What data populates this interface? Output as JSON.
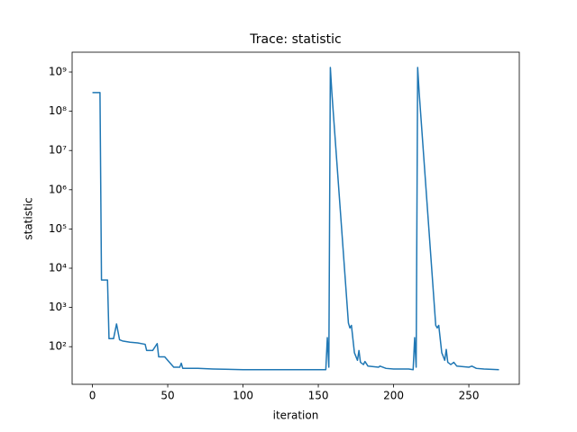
{
  "chart_data": {
    "type": "line",
    "title": "Trace: statistic",
    "x_label": "iteration",
    "y_label": "statistic",
    "y_scale": "log",
    "xlim": [
      -13.5,
      283.5
    ],
    "xticks": [
      0,
      50,
      100,
      150,
      200,
      250
    ],
    "ylim": [
      11,
      3200000000
    ],
    "yticks": [
      {
        "value": 100,
        "label": "10²"
      },
      {
        "value": 1000,
        "label": "10³"
      },
      {
        "value": 10000,
        "label": "10⁴"
      },
      {
        "value": 100000,
        "label": "10⁵"
      },
      {
        "value": 1000000,
        "label": "10⁶"
      },
      {
        "value": 10000000,
        "label": "10⁷"
      },
      {
        "value": 100000000,
        "label": "10⁸"
      },
      {
        "value": 1000000000,
        "label": "10⁹"
      }
    ],
    "x": [
      0,
      5,
      6,
      10,
      11,
      14,
      16,
      18,
      20,
      25,
      30,
      35,
      36,
      40,
      43,
      44,
      48,
      50,
      54,
      58,
      59,
      60,
      70,
      80,
      100,
      155,
      156,
      157,
      158,
      159,
      170,
      171,
      172,
      174,
      176,
      177,
      178,
      180,
      181,
      183,
      190,
      191,
      195,
      200,
      210,
      213,
      214,
      215,
      216,
      217,
      228,
      229,
      230,
      232,
      234,
      235,
      236,
      238,
      240,
      242,
      250,
      252,
      255,
      260,
      270
    ],
    "series": [
      {
        "color": "#1f77b4",
        "values": [
          300000000,
          300000000,
          5000,
          5000,
          160,
          160,
          380,
          150,
          140,
          130,
          125,
          115,
          80,
          80,
          120,
          55,
          55,
          45,
          30,
          30,
          38,
          28,
          28,
          27,
          26,
          26,
          170,
          30,
          1300000000,
          300000000,
          400,
          300,
          350,
          70,
          45,
          80,
          40,
          35,
          42,
          32,
          30,
          32,
          28,
          27,
          27,
          26,
          170,
          30,
          1300000000,
          300000000,
          350,
          300,
          350,
          70,
          45,
          85,
          40,
          35,
          40,
          32,
          30,
          32,
          28,
          27,
          26
        ]
      }
    ]
  }
}
